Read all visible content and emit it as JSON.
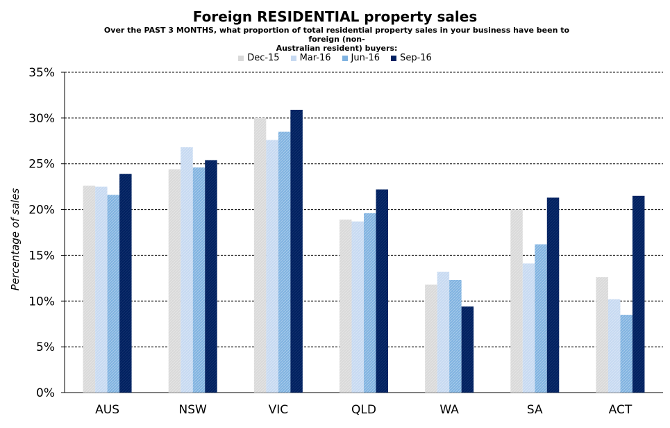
{
  "chart_data": {
    "type": "bar",
    "title": "Foreign RESIDENTIAL property sales",
    "subtitle_lines": [
      "Over the PAST 3 MONTHS, what proportion of total residential property sales in your business have been to foreign (non-",
      "Australian resident) buyers:"
    ],
    "xlabel": "",
    "ylabel": "Percentage of sales",
    "ylim": [
      0,
      35
    ],
    "yticks": [
      "0%",
      "5%",
      "10%",
      "15%",
      "20%",
      "25%",
      "30%",
      "35%"
    ],
    "ytick_values": [
      0,
      5,
      10,
      15,
      20,
      25,
      30,
      35
    ],
    "grid": true,
    "legend_position": "top",
    "categories": [
      "AUS",
      "NSW",
      "VIC",
      "QLD",
      "WA",
      "SA",
      "ACT"
    ],
    "series": [
      {
        "name": "Dec-15",
        "color": "#d9d9d9",
        "values": [
          22.6,
          24.4,
          30.0,
          18.9,
          11.8,
          20.0,
          12.6
        ]
      },
      {
        "name": "Mar-16",
        "color": "#c6d9f1",
        "values": [
          22.5,
          26.8,
          27.6,
          18.7,
          13.2,
          14.1,
          10.2
        ]
      },
      {
        "name": "Jun-16",
        "color": "#7fb2e0",
        "values": [
          21.6,
          24.6,
          28.5,
          19.6,
          12.3,
          16.2,
          8.5
        ]
      },
      {
        "name": "Sep-16",
        "color": "#002060",
        "values": [
          23.9,
          25.4,
          30.9,
          22.2,
          9.4,
          21.3,
          21.5
        ]
      }
    ]
  }
}
